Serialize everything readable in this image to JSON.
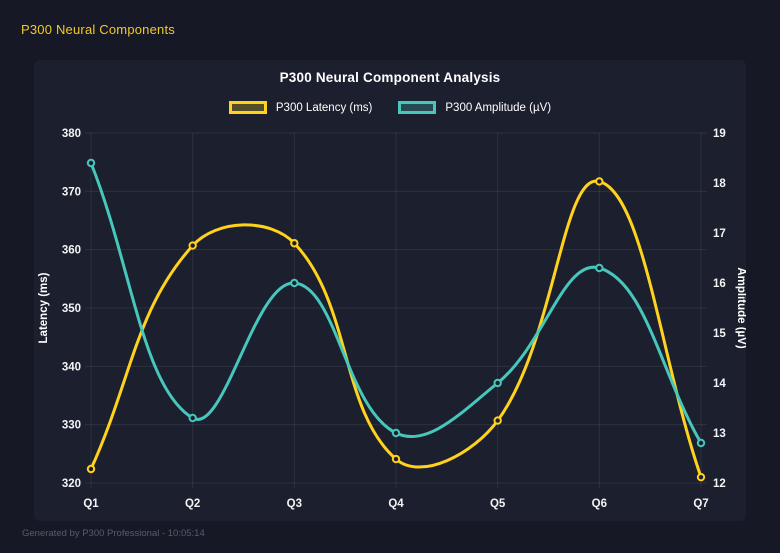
{
  "header": {
    "title": "P300 Neural Components"
  },
  "footer": {
    "text": "Generated by P300 Professional - 10:05:14"
  },
  "colors": {
    "page_bg": "#161925",
    "card_bg": "#1c1f2e",
    "accent_yellow": "#ffd21e",
    "accent_teal": "#47c7bb",
    "header_yellow": "#f0c929",
    "grid": "rgba(255,255,255,0.08)",
    "tick_text": "#f2f3f5",
    "footer_text": "#565b70"
  },
  "chart_data": {
    "type": "line",
    "title": "P300 Neural Component Analysis",
    "categories": [
      "Q1",
      "Q2",
      "Q3",
      "Q4",
      "Q5",
      "Q6",
      "Q7"
    ],
    "series": [
      {
        "name": "P300 Latency (ms)",
        "yaxis": "left",
        "color": "#ffd21e",
        "values": [
          322.4,
          360.7,
          361.1,
          324.1,
          330.7,
          371.7,
          321.0
        ]
      },
      {
        "name": "P300 Amplitude (µV)",
        "yaxis": "right",
        "color": "#47c7bb",
        "values": [
          18.4,
          13.3,
          16.0,
          13.0,
          14.0,
          16.3,
          12.8
        ]
      }
    ],
    "left_axis": {
      "label": "Latency (ms)",
      "min": 320,
      "max": 380,
      "ticks": [
        320,
        330,
        340,
        350,
        360,
        370,
        380
      ]
    },
    "right_axis": {
      "label": "Amplitude (µV)",
      "min": 12,
      "max": 19,
      "ticks": [
        12,
        13,
        14,
        15,
        16,
        17,
        18,
        19
      ]
    },
    "grid": true,
    "legend_position": "top",
    "curve_tension": 0.4
  }
}
